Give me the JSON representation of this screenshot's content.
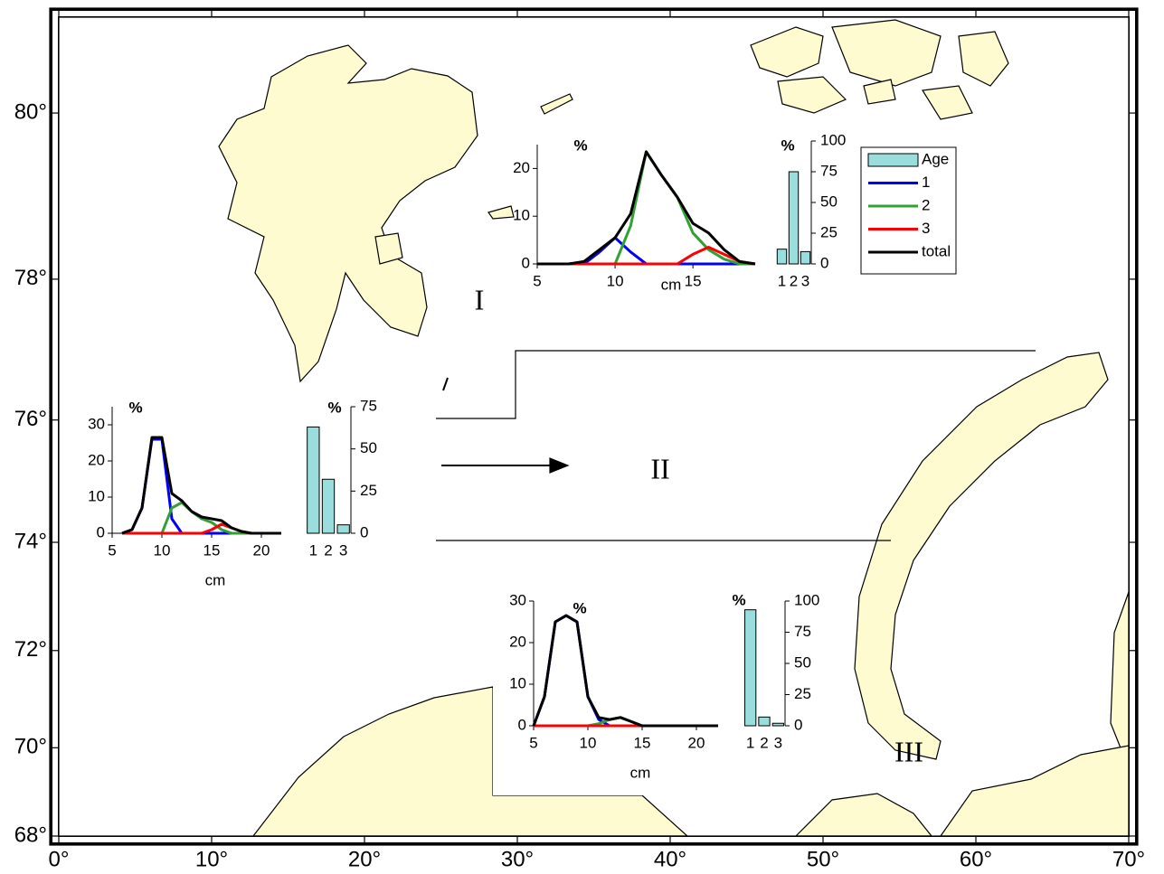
{
  "map": {
    "projection": "mercator",
    "xlim": [
      0,
      70
    ],
    "ylim": [
      68,
      81
    ],
    "xticks": [
      {
        "value": 0,
        "label": "0°"
      },
      {
        "value": 10,
        "label": "10°"
      },
      {
        "value": 20,
        "label": "20°"
      },
      {
        "value": 30,
        "label": "30°"
      },
      {
        "value": 40,
        "label": "40°"
      },
      {
        "value": 50,
        "label": "50°"
      },
      {
        "value": 60,
        "label": "60°"
      },
      {
        "value": 70,
        "label": "70°"
      }
    ],
    "yticks": [
      {
        "value": 68,
        "label": "68°"
      },
      {
        "value": 70,
        "label": "70°"
      },
      {
        "value": 72,
        "label": "72°"
      },
      {
        "value": 74,
        "label": "74°"
      },
      {
        "value": 76,
        "label": "76°"
      },
      {
        "value": 78,
        "label": "78°"
      },
      {
        "value": 80,
        "label": "80°"
      }
    ],
    "labels": [
      "I",
      "II",
      "III"
    ]
  },
  "chart_data": [
    {
      "type": "line",
      "xlabel": "cm",
      "ylabel": "%",
      "legend": "right",
      "x": [
        5,
        6,
        7,
        8,
        9,
        10,
        11,
        12,
        13,
        14,
        15,
        16,
        17,
        18,
        19
      ],
      "xlim": [
        5,
        19
      ],
      "xticks": [
        5,
        10,
        15
      ],
      "ylim": [
        0,
        25
      ],
      "yticks": [
        0,
        10,
        20
      ],
      "series": [
        {
          "name": "1",
          "color": "#0000ff",
          "values": [
            0,
            0,
            0,
            0,
            2.5,
            5.5,
            2.5,
            0,
            0,
            0,
            0,
            0,
            0,
            0,
            0
          ]
        },
        {
          "name": "2",
          "color": "#33a033",
          "values": [
            0,
            0,
            0,
            0,
            0,
            0,
            8,
            23.5,
            18.5,
            14,
            6.5,
            3,
            1,
            0,
            0
          ]
        },
        {
          "name": "3",
          "color": "#ff0000",
          "values": [
            0,
            0,
            0,
            0,
            0,
            0,
            0,
            0,
            0,
            0,
            2,
            3.5,
            2,
            0.5,
            0
          ]
        },
        {
          "name": "total",
          "color": "#000000",
          "values": [
            0,
            0,
            0,
            0.5,
            3,
            5.5,
            10.5,
            23.5,
            18.5,
            14,
            8.5,
            6.5,
            3,
            0.5,
            0
          ]
        }
      ]
    },
    {
      "type": "bar",
      "ylabel": "%",
      "legend": "right",
      "categories": [
        "1",
        "2",
        "3"
      ],
      "ylim": [
        0,
        100
      ],
      "yticks": [
        0,
        25,
        50,
        75,
        100
      ],
      "series": [
        {
          "name": "Age",
          "color": "#99dddd",
          "values": [
            12,
            75,
            10
          ]
        }
      ]
    },
    {
      "type": "line",
      "xlabel": "cm",
      "ylabel": "%",
      "x": [
        6,
        7,
        8,
        9,
        10,
        11,
        12,
        13,
        14,
        15,
        16,
        17,
        18,
        19,
        20,
        21,
        22
      ],
      "xlim": [
        5,
        22
      ],
      "xticks": [
        5,
        10,
        15,
        20
      ],
      "ylim": [
        0,
        35
      ],
      "yticks": [
        0,
        10,
        20,
        30
      ],
      "series": [
        {
          "color": "#0000ff",
          "values": [
            0,
            1,
            7,
            26,
            26,
            4,
            0,
            0,
            0,
            0,
            0,
            0,
            0,
            0,
            0,
            0,
            0
          ]
        },
        {
          "color": "#33a033",
          "values": [
            0,
            0,
            0,
            0,
            0,
            7,
            8.5,
            6,
            4,
            3,
            1,
            0,
            0,
            0,
            0,
            0,
            0
          ]
        },
        {
          "color": "#ff0000",
          "values": [
            0,
            0,
            0,
            0,
            0,
            0,
            0,
            0,
            0,
            1,
            2.5,
            1.5,
            0.5,
            0,
            0,
            0,
            0
          ]
        },
        {
          "color": "#000000",
          "values": [
            0,
            1,
            7,
            26.5,
            26.5,
            11,
            9,
            6,
            4.5,
            4,
            3.5,
            1.5,
            0.5,
            0,
            0,
            0,
            0
          ]
        }
      ]
    },
    {
      "type": "bar",
      "ylabel": "%",
      "categories": [
        "1",
        "2",
        "3"
      ],
      "ylim": [
        0,
        75
      ],
      "yticks": [
        0,
        25,
        50,
        75
      ],
      "series": [
        {
          "color": "#99dddd",
          "values": [
            63,
            32,
            5
          ]
        }
      ]
    },
    {
      "type": "line",
      "xlabel": "cm",
      "ylabel": "%",
      "x": [
        5,
        6,
        7,
        8,
        9,
        10,
        11,
        12,
        13,
        14,
        15,
        16,
        17,
        18,
        19,
        20,
        21,
        22
      ],
      "xlim": [
        5,
        22
      ],
      "xticks": [
        5,
        10,
        15,
        20
      ],
      "ylim": [
        0,
        30
      ],
      "yticks": [
        0,
        10,
        20,
        30
      ],
      "series": [
        {
          "color": "#0000ff",
          "values": [
            0,
            7,
            25,
            26.5,
            25,
            7,
            1.5,
            0,
            0,
            0,
            0,
            0,
            0,
            0,
            0,
            0,
            0,
            0
          ]
        },
        {
          "color": "#33a033",
          "values": [
            0,
            0,
            0,
            0,
            0,
            0,
            0.5,
            1.5,
            2,
            1,
            0,
            0,
            0,
            0,
            0,
            0,
            0,
            0
          ]
        },
        {
          "color": "#ff0000",
          "values": [
            0,
            0,
            0,
            0,
            0,
            0,
            0,
            0,
            0,
            0,
            0,
            0,
            null,
            null,
            null,
            null,
            null,
            null
          ]
        },
        {
          "color": "#000000",
          "values": [
            0,
            7,
            25,
            26.5,
            25,
            7,
            2,
            1.5,
            2,
            1,
            0,
            0,
            0,
            0,
            0,
            0,
            0,
            0
          ]
        }
      ]
    },
    {
      "type": "bar",
      "ylabel": "%",
      "categories": [
        "1",
        "2",
        "3"
      ],
      "ylim": [
        0,
        100
      ],
      "yticks": [
        0,
        25,
        50,
        75,
        100
      ],
      "series": [
        {
          "color": "#99dddd",
          "values": [
            93,
            7,
            2
          ]
        }
      ]
    }
  ]
}
